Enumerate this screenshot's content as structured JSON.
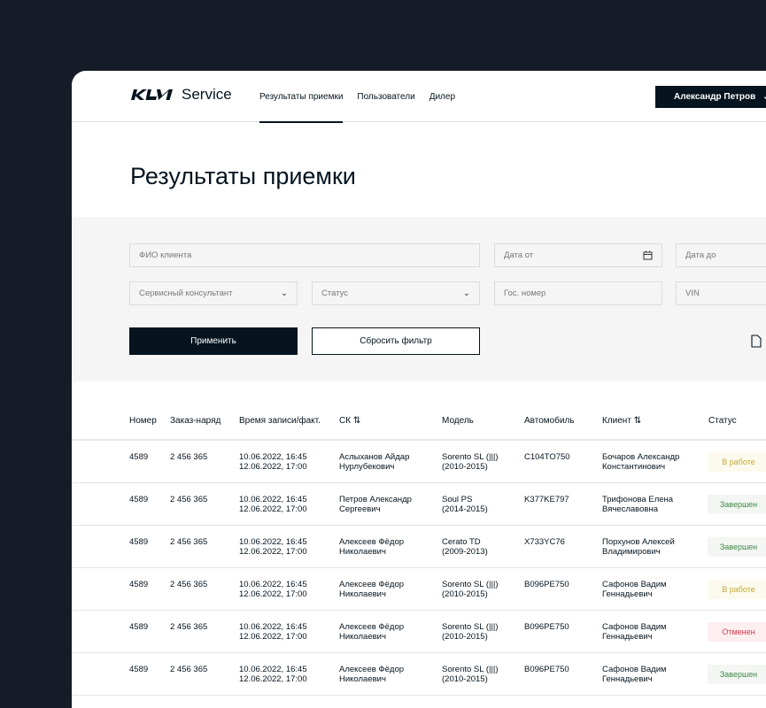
{
  "header": {
    "logo": "KIA",
    "service": "Service",
    "nav": [
      {
        "label": "Результаты приемки",
        "active": true
      },
      {
        "label": "Пользователи"
      },
      {
        "label": "Дилер"
      }
    ],
    "user": "Александр Петров"
  },
  "title": "Результаты приемки",
  "filters": {
    "client": "ФИО клиента",
    "date_from": "Дата от",
    "date_to": "Дата до",
    "consultant": "Сервисный консультант",
    "status": "Статус",
    "plate": "Гос. номер",
    "vin": "VIN",
    "apply": "Применить",
    "reset": "Сбросить фильтр"
  },
  "table": {
    "headers": [
      "Номер",
      "Заказ-наряд",
      "Время записи/факт.",
      "СК ⇅",
      "Модель",
      "Автомобиль",
      "Клиент ⇅",
      "Статус"
    ],
    "rows": [
      {
        "num": "4589",
        "order": "2 456 365",
        "t1": "10.06.2022, 16:45",
        "t2": "12.06.2022, 17:00",
        "sk1": "Аслыханов Айдар",
        "sk2": "Нурлубекович",
        "m1": "Sorento SL (|||)",
        "m2": "(2010-2015)",
        "car": "C104TO750",
        "cl1": "Бочаров Александр",
        "cl2": "Константинович",
        "status": "В работе",
        "type": "work"
      },
      {
        "num": "4589",
        "order": "2 456 365",
        "t1": "10.06.2022, 16:45",
        "t2": "12.06.2022, 17:00",
        "sk1": "Петров Александр",
        "sk2": "Сергеевич",
        "m1": "Soul PS",
        "m2": "(2014-2015)",
        "car": "K377KE797",
        "cl1": "Трифонова Елена",
        "cl2": "Вячеславовна",
        "status": "Завершен",
        "type": "done"
      },
      {
        "num": "4589",
        "order": "2 456 365",
        "t1": "10.06.2022, 16:45",
        "t2": "12.06.2022, 17:00",
        "sk1": "Алексеев Фёдор",
        "sk2": "Николаевич",
        "m1": "Cerato TD",
        "m2": "(2009-2013)",
        "car": "X733YC76",
        "cl1": "Порхунов Алексей",
        "cl2": "Владимирович",
        "status": "Завершен",
        "type": "done"
      },
      {
        "num": "4589",
        "order": "2 456 365",
        "t1": "10.06.2022, 16:45",
        "t2": "12.06.2022, 17:00",
        "sk1": "Алексеев Фёдор",
        "sk2": "Николаевич",
        "m1": "Sorento SL (|||)",
        "m2": "(2010-2015)",
        "car": "B096PE750",
        "cl1": "Сафонов Вадим",
        "cl2": "Геннадьевич",
        "status": "В работе",
        "type": "work"
      },
      {
        "num": "4589",
        "order": "2 456 365",
        "t1": "10.06.2022, 16:45",
        "t2": "12.06.2022, 17:00",
        "sk1": "Алексеев Фёдор",
        "sk2": "Николаевич",
        "m1": "Sorento SL (|||)",
        "m2": "(2010-2015)",
        "car": "B096PE750",
        "cl1": "Сафонов Вадим",
        "cl2": "Геннадьевич",
        "status": "Отменен",
        "type": "cancel"
      },
      {
        "num": "4589",
        "order": "2 456 365",
        "t1": "10.06.2022, 16:45",
        "t2": "12.06.2022, 17:00",
        "sk1": "Алексеев Фёдор",
        "sk2": "Николаевич",
        "m1": "Sorento SL (|||)",
        "m2": "(2010-2015)",
        "car": "B096PE750",
        "cl1": "Сафонов Вадим",
        "cl2": "Геннадьевич",
        "status": "Завершен",
        "type": "done"
      }
    ]
  },
  "status_colors": {
    "work": {
      "bg": "#fcfaee",
      "fg": "#c4a935"
    },
    "done": {
      "bg": "#f3f6f3",
      "fg": "#3f8a47"
    },
    "cancel": {
      "bg": "#fdeef0",
      "fg": "#d8384f"
    }
  }
}
